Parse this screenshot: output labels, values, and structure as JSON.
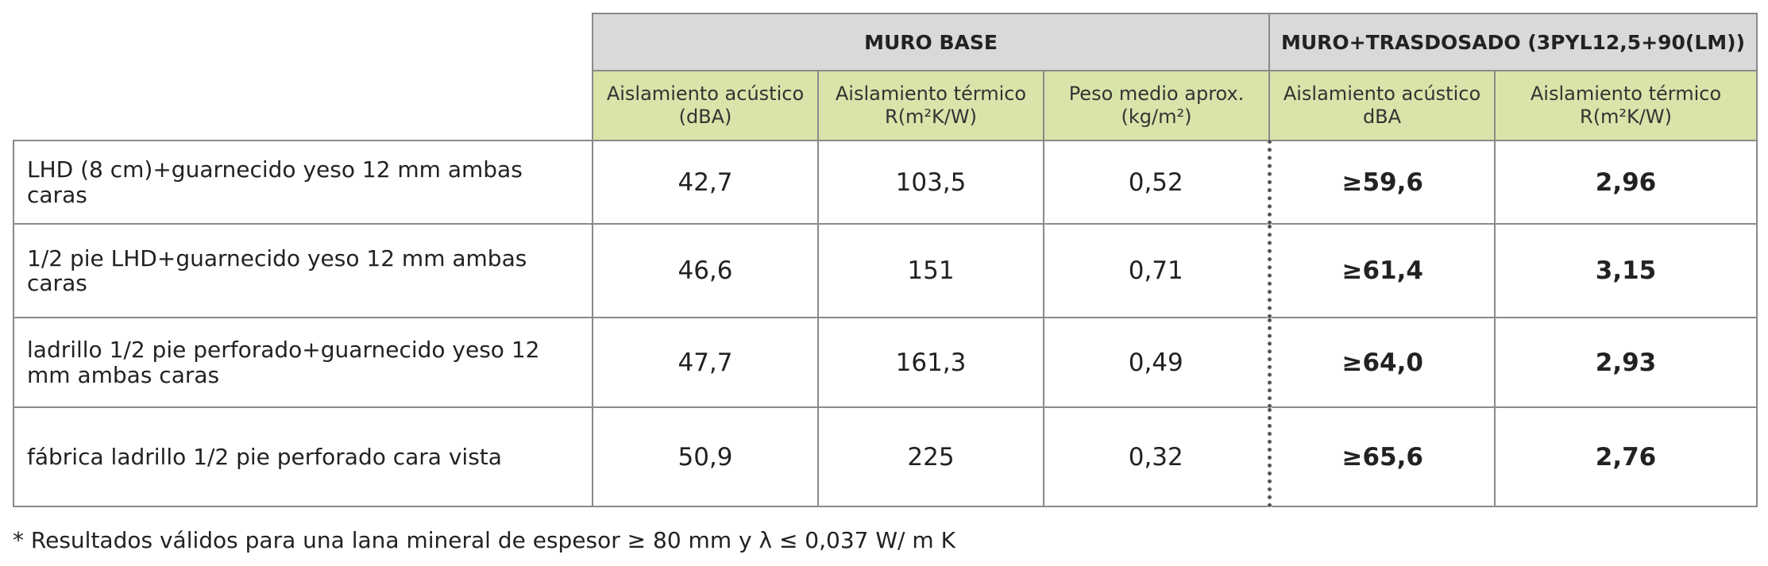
{
  "table": {
    "groups": [
      "MURO BASE",
      "MURO+TRASDOSADO (3PYL12,5+90(LM))"
    ],
    "columns": [
      "Aislamiento acústico (dBA)",
      "Aislamiento térmico  R(m²K/W)",
      "Peso medio aprox. (kg/m²)",
      "Aislamiento acústico dBA",
      "Aislamiento térmico  R(m²K/W)"
    ],
    "rows": [
      {
        "label": "LHD (8 cm)+guarnecido yeso 12 mm ambas caras",
        "cells": [
          "42,7",
          "103,5",
          "0,52",
          "≥59,6",
          "2,96"
        ]
      },
      {
        "label": "1/2 pie LHD+guarnecido yeso 12 mm ambas caras",
        "cells": [
          "46,6",
          "151",
          "0,71",
          "≥61,4",
          "3,15"
        ]
      },
      {
        "label": "ladrillo 1/2 pie perforado+guarnecido yeso 12 mm ambas caras",
        "cells": [
          "47,7",
          "161,3",
          "0,49",
          "≥64,0",
          "2,93"
        ]
      },
      {
        "label": "fábrica ladrillo 1/2 pie perforado cara vista",
        "cells": [
          "50,9",
          "225",
          "0,32",
          "≥65,6",
          "2,76"
        ]
      }
    ]
  },
  "footnote": "* Resultados válidos para una lana mineral de espesor ≥ 80 mm y λ ≤ 0,037 W/ m K"
}
